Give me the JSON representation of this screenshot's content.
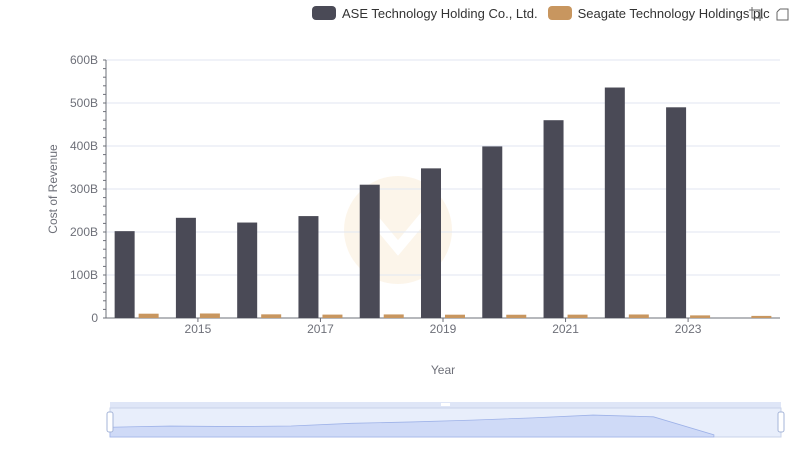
{
  "chart_data": {
    "type": "bar",
    "title": "",
    "xlabel": "Year",
    "ylabel": "Cost of Revenue",
    "categories": [
      "2014",
      "2015",
      "2016",
      "2017",
      "2018",
      "2019",
      "2020",
      "2021",
      "2022",
      "2023",
      "2024"
    ],
    "x_tick_labels": [
      "2015",
      "2017",
      "2019",
      "2021",
      "2023"
    ],
    "y_tick_labels": [
      "0",
      "100B",
      "200B",
      "300B",
      "400B",
      "500B",
      "600B"
    ],
    "ylim": [
      0,
      600000000000
    ],
    "grid": true,
    "legend_position": "top",
    "series": [
      {
        "name": "ASE Technology Holding Co., Ltd.",
        "color": "#4a4a56",
        "values": [
          202000000000,
          233000000000,
          222000000000,
          237000000000,
          310000000000,
          348000000000,
          399000000000,
          460000000000,
          536000000000,
          490000000000,
          null
        ]
      },
      {
        "name": "Seagate Technology Holdings plc",
        "color": "#c8965f",
        "values": [
          10000000000,
          10500000000,
          8500000000,
          7900000000,
          8300000000,
          7700000000,
          7600000000,
          7800000000,
          8200000000,
          6100000000,
          4900000000
        ]
      }
    ]
  },
  "toolbox": {
    "zoom_icon": "zoom-icon",
    "restore_icon": "restore-icon"
  },
  "datazoom": {
    "start_percent": 0,
    "end_percent": 100
  }
}
